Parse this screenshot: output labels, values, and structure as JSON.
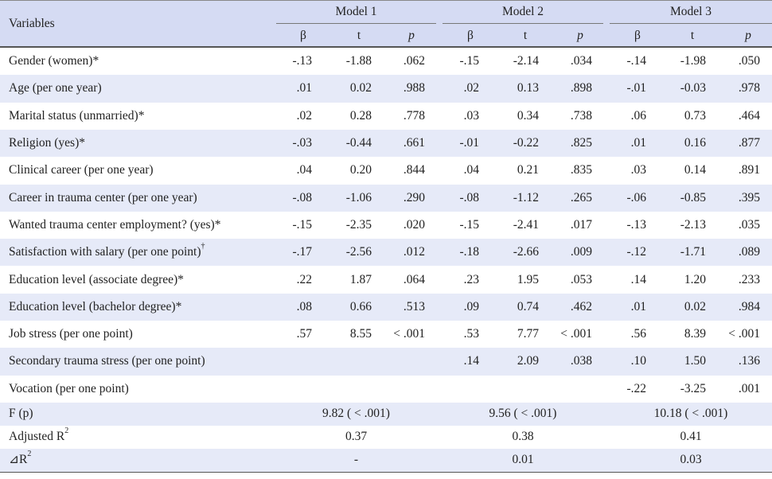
{
  "table": {
    "header": {
      "variables": "Variables",
      "models": [
        "Model 1",
        "Model 2",
        "Model 3"
      ],
      "stats": [
        "β",
        "t",
        "p"
      ]
    },
    "rows": [
      {
        "label": "Gender (women)*",
        "cells": [
          "-.13",
          "-1.88",
          ".062",
          "-.15",
          "-2.14",
          ".034",
          "-.14",
          "-1.98",
          ".050"
        ]
      },
      {
        "label": "Age (per one year)",
        "cells": [
          ".01",
          "0.02",
          ".988",
          ".02",
          "0.13",
          ".898",
          "-.01",
          "-0.03",
          ".978"
        ]
      },
      {
        "label": "Marital status (unmarried)*",
        "cells": [
          ".02",
          "0.28",
          ".778",
          ".03",
          "0.34",
          ".738",
          ".06",
          "0.73",
          ".464"
        ]
      },
      {
        "label": "Religion (yes)*",
        "cells": [
          "-.03",
          "-0.44",
          ".661",
          "-.01",
          "-0.22",
          ".825",
          ".01",
          "0.16",
          ".877"
        ]
      },
      {
        "label": "Clinical career (per one year)",
        "cells": [
          ".04",
          "0.20",
          ".844",
          ".04",
          "0.21",
          ".835",
          ".03",
          "0.14",
          ".891"
        ]
      },
      {
        "label": "Career in trauma center (per one year)",
        "cells": [
          "-.08",
          "-1.06",
          ".290",
          "-.08",
          "-1.12",
          ".265",
          "-.06",
          "-0.85",
          ".395"
        ]
      },
      {
        "label": "Wanted trauma center employment? (yes)*",
        "cells": [
          "-.15",
          "-2.35",
          ".020",
          "-.15",
          "-2.41",
          ".017",
          "-.13",
          "-2.13",
          ".035"
        ]
      },
      {
        "label": "Satisfaction with salary (per one point)",
        "sup": "†",
        "cells": [
          "-.17",
          "-2.56",
          ".012",
          "-.18",
          "-2.66",
          ".009",
          "-.12",
          "-1.71",
          ".089"
        ]
      },
      {
        "label": "Education level (associate degree)*",
        "cells": [
          ".22",
          "1.87",
          ".064",
          ".23",
          "1.95",
          ".053",
          ".14",
          "1.20",
          ".233"
        ]
      },
      {
        "label": "Education level (bachelor degree)*",
        "cells": [
          ".08",
          "0.66",
          ".513",
          ".09",
          "0.74",
          ".462",
          ".01",
          "0.02",
          ".984"
        ]
      },
      {
        "label": "Job stress (per one point)",
        "cells": [
          ".57",
          "8.55",
          "< .001",
          ".53",
          "7.77",
          "< .001",
          ".56",
          "8.39",
          "< .001"
        ]
      },
      {
        "label": "Secondary trauma stress (per one point)",
        "cells": [
          null,
          null,
          null,
          ".14",
          "2.09",
          ".038",
          ".10",
          "1.50",
          ".136"
        ]
      },
      {
        "label": "Vocation (per one point)",
        "cells": [
          null,
          null,
          null,
          null,
          null,
          null,
          "-.22",
          "-3.25",
          ".001"
        ]
      }
    ],
    "summary": [
      {
        "label": "F (p)",
        "cells": [
          "9.82 ( < .001)",
          "9.56 ( < .001)",
          "10.18 ( < .001)"
        ]
      },
      {
        "label": "Adjusted R",
        "sup": "2",
        "cells": [
          "0.37",
          "0.38",
          "0.41"
        ]
      },
      {
        "label": "⊿R",
        "sup": "2",
        "cells": [
          "-",
          "0.01",
          "0.03"
        ]
      }
    ]
  }
}
